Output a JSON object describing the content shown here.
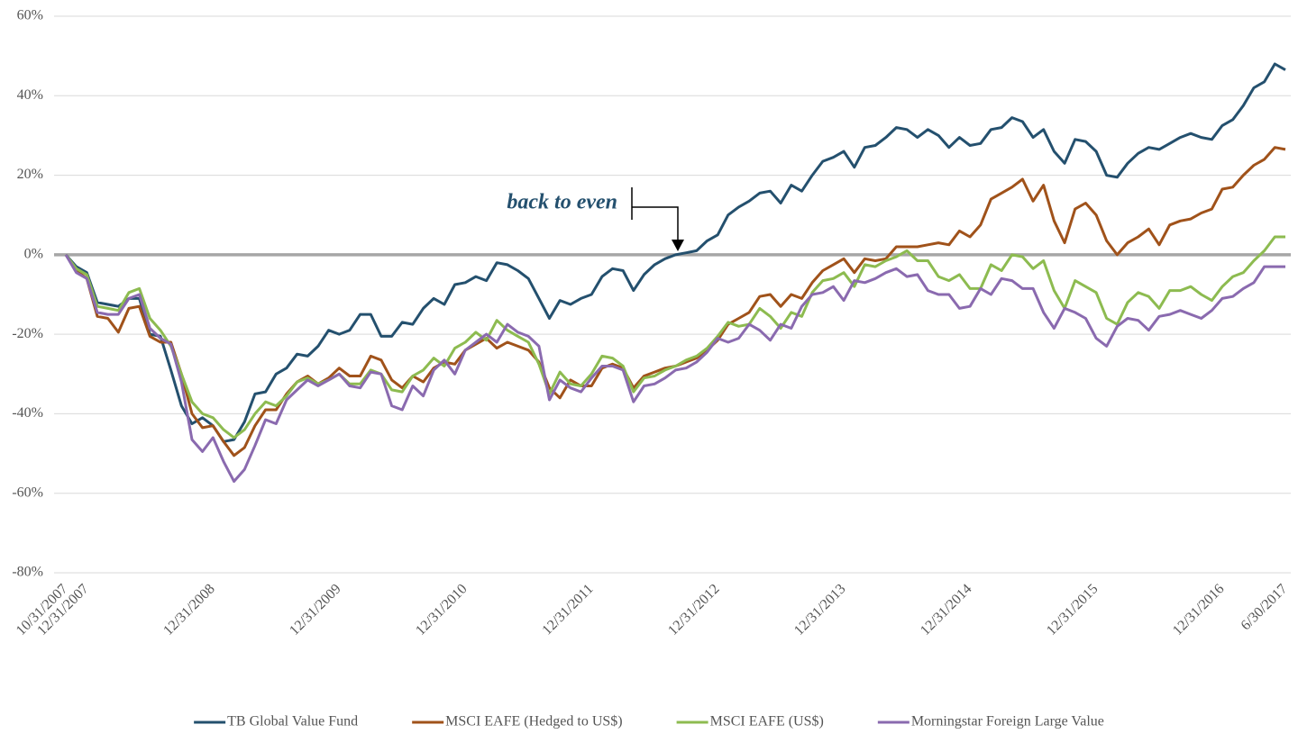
{
  "chart_data": {
    "type": "line",
    "categories": [
      "10/31/2007",
      null,
      "12/31/2007",
      null,
      null,
      null,
      null,
      null,
      null,
      null,
      null,
      null,
      null,
      null,
      "12/31/2008",
      null,
      null,
      null,
      null,
      null,
      null,
      null,
      null,
      null,
      null,
      null,
      "12/31/2009",
      null,
      null,
      null,
      null,
      null,
      null,
      null,
      null,
      null,
      null,
      null,
      "12/31/2010",
      null,
      null,
      null,
      null,
      null,
      null,
      null,
      null,
      null,
      null,
      null,
      "12/31/2011",
      null,
      null,
      null,
      null,
      null,
      null,
      null,
      null,
      null,
      null,
      null,
      "12/31/2012",
      null,
      null,
      null,
      null,
      null,
      null,
      null,
      null,
      null,
      null,
      null,
      "12/31/2013",
      null,
      null,
      null,
      null,
      null,
      null,
      null,
      null,
      null,
      null,
      null,
      "12/31/2014",
      null,
      null,
      null,
      null,
      null,
      null,
      null,
      null,
      null,
      null,
      null,
      "12/31/2015",
      null,
      null,
      null,
      null,
      null,
      null,
      null,
      null,
      null,
      null,
      null,
      "12/31/2016",
      null,
      null,
      null,
      null,
      null,
      "6/30/2017"
    ],
    "series": [
      {
        "name": "TB Global Value Fund",
        "color": "#24506e",
        "values": [
          0,
          -3,
          -4.5,
          -12,
          -12.5,
          -13,
          -11,
          -11,
          -20,
          -20.5,
          -29,
          -38,
          -42.5,
          -41,
          -43,
          -47,
          -46.5,
          -42,
          -35,
          -34.5,
          -30,
          -28.5,
          -25,
          -25.5,
          -23,
          -19,
          -20,
          -19,
          -15,
          -15,
          -20.5,
          -20.5,
          -17,
          -17.5,
          -13.5,
          -11,
          -12.5,
          -7.5,
          -7,
          -5.5,
          -6.5,
          -2,
          -2.5,
          -4,
          -6,
          -11,
          -16,
          -11.5,
          -12.5,
          -11,
          -10,
          -5.5,
          -3.5,
          -4,
          -9,
          -5,
          -2.5,
          -1,
          0,
          0.5,
          1,
          3.5,
          5,
          10,
          12,
          13.5,
          15.5,
          16,
          13,
          17.5,
          16,
          20,
          23.5,
          24.5,
          26,
          22,
          27,
          27.5,
          29.5,
          32,
          31.5,
          29.5,
          31.5,
          30,
          27,
          29.5,
          27.5,
          28,
          31.5,
          32,
          34.5,
          33.5,
          29.5,
          31.5,
          26,
          23,
          29,
          28.5,
          26,
          20,
          19.5,
          23,
          25.5,
          27,
          26.5,
          28,
          29.5,
          30.5,
          29.5,
          29,
          32.5,
          34,
          37.5,
          42,
          43.5,
          48,
          46.5
        ]
      },
      {
        "name": "MSCI EAFE (Hedged to US$)",
        "color": "#a0521a",
        "values": [
          0,
          -4,
          -6,
          -15.5,
          -16,
          -19.5,
          -13.5,
          -13,
          -20.5,
          -22,
          -22,
          -30,
          -40,
          -43.5,
          -43,
          -47,
          -50.5,
          -48.5,
          -43,
          -39,
          -39,
          -35,
          -32,
          -30.5,
          -32.5,
          -31,
          -28.5,
          -30.5,
          -30.5,
          -25.5,
          -26.5,
          -31.5,
          -33.5,
          -30.5,
          -32,
          -28.5,
          -27,
          -27.5,
          -24,
          -22.5,
          -21,
          -23.5,
          -22,
          -23,
          -24,
          -27,
          -33.5,
          -36,
          -31.5,
          -33,
          -33,
          -28.5,
          -27.5,
          -28.5,
          -33.5,
          -30.5,
          -29.5,
          -28.5,
          -28,
          -27,
          -26,
          -24,
          -21.5,
          -17.5,
          -16,
          -14.5,
          -10.5,
          -10,
          -13,
          -10,
          -11,
          -7,
          -4,
          -2.5,
          -1,
          -4.5,
          -1,
          -1.5,
          -1,
          2,
          2,
          2,
          2.5,
          3,
          2.5,
          6,
          4.5,
          7.5,
          14,
          15.5,
          17,
          19,
          13.5,
          17.5,
          8.5,
          3,
          11.5,
          13,
          10,
          3.5,
          0,
          3,
          4.5,
          6.5,
          2.5,
          7.5,
          8.5,
          9,
          10.5,
          11.5,
          16.5,
          17,
          20,
          22.5,
          24,
          27,
          26.5
        ]
      },
      {
        "name": "MSCI EAFE (US$)",
        "color": "#8dbb50",
        "values": [
          0,
          -3.5,
          -5,
          -13,
          -13.5,
          -14,
          -9.5,
          -8.5,
          -16,
          -19,
          -23,
          -30,
          -37,
          -40,
          -41,
          -44,
          -46,
          -44,
          -40,
          -37,
          -38,
          -35.5,
          -32,
          -31,
          -32.5,
          -31.5,
          -30,
          -32.5,
          -32.5,
          -29,
          -30,
          -34,
          -34.5,
          -30.5,
          -29,
          -26,
          -28,
          -23.5,
          -22,
          -19.5,
          -21.5,
          -16.5,
          -19,
          -20.5,
          -22,
          -27.5,
          -35,
          -29.5,
          -32.5,
          -33,
          -30,
          -25.5,
          -26,
          -28,
          -34.5,
          -31,
          -30.5,
          -29,
          -28,
          -26.5,
          -25.5,
          -23.5,
          -20.5,
          -17,
          -18,
          -17.5,
          -13.5,
          -15.5,
          -18.5,
          -14.5,
          -15.5,
          -9.5,
          -6.5,
          -6,
          -4.5,
          -8,
          -2.5,
          -3,
          -1.5,
          -0.5,
          1,
          -1.5,
          -1.5,
          -5.5,
          -6.5,
          -5,
          -8.5,
          -8.5,
          -2.5,
          -4,
          0,
          -0.5,
          -3.5,
          -1.5,
          -9,
          -13.5,
          -6.5,
          -8,
          -9.5,
          -16,
          -17.5,
          -12,
          -9.5,
          -10.5,
          -13.5,
          -9,
          -9,
          -8,
          -10,
          -11.5,
          -8,
          -5.5,
          -4.5,
          -1.5,
          1,
          4.5,
          4.5
        ]
      },
      {
        "name": "Morningstar Foreign Large Value",
        "color": "#8a6aaf",
        "values": [
          0,
          -4.5,
          -6,
          -14.5,
          -15,
          -15,
          -11,
          -10,
          -18.5,
          -21,
          -22.5,
          -32,
          -46.5,
          -49.5,
          -46,
          -52,
          -57,
          -54,
          -48,
          -41.5,
          -42.5,
          -36.5,
          -34,
          -31.5,
          -33,
          -31.5,
          -30,
          -33,
          -33.5,
          -29.5,
          -30,
          -38,
          -39,
          -33,
          -35.5,
          -29,
          -26.5,
          -30,
          -24,
          -22,
          -20,
          -22,
          -17.5,
          -19.5,
          -20.5,
          -23,
          -36.5,
          -31.5,
          -33.5,
          -34.5,
          -31,
          -28,
          -28,
          -29,
          -37,
          -33,
          -32.5,
          -31,
          -29,
          -28.5,
          -27,
          -24.5,
          -21,
          -22,
          -21,
          -17.5,
          -19,
          -21.5,
          -17.5,
          -18.5,
          -13,
          -10,
          -9.5,
          -8,
          -11.5,
          -6.5,
          -7,
          -6,
          -4.5,
          -3.5,
          -5.5,
          -5,
          -9,
          -10,
          -10,
          -13.5,
          -13,
          -8.5,
          -10,
          -6,
          -6.5,
          -8.5,
          -8.5,
          -14.5,
          -18.5,
          -13.5,
          -14.5,
          -16,
          -21,
          -23,
          -18,
          -16,
          -16.5,
          -19,
          -15.5,
          -15,
          -14,
          -15,
          -16,
          -14,
          -11,
          -10.5,
          -8.5,
          -7,
          -3,
          -3,
          -3
        ]
      }
    ],
    "ylim": [
      -80,
      60
    ],
    "yticks": [
      {
        "value": -80,
        "label": "-80%"
      },
      {
        "value": -60,
        "label": "-60%"
      },
      {
        "value": -40,
        "label": "-40%"
      },
      {
        "value": -20,
        "label": "-20%"
      },
      {
        "value": 0,
        "label": "0%"
      },
      {
        "value": 20,
        "label": "20%"
      },
      {
        "value": 40,
        "label": "40%"
      },
      {
        "value": 60,
        "label": "60%"
      }
    ],
    "grid": true,
    "annotation": "back to even",
    "legend": "bottom"
  }
}
